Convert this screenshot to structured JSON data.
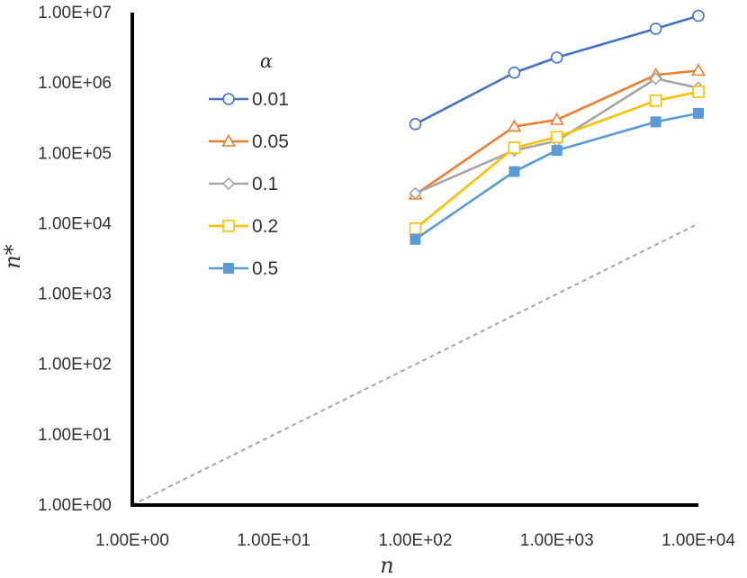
{
  "chart_data": {
    "type": "line",
    "scale": "log-log",
    "xlabel": "n",
    "ylabel": "n*",
    "xlim": [
      1,
      10000
    ],
    "ylim": [
      1,
      10000000
    ],
    "x_ticks": [
      {
        "value": 1,
        "label": "1.00E+00"
      },
      {
        "value": 10,
        "label": "1.00E+01"
      },
      {
        "value": 100,
        "label": "1.00E+02"
      },
      {
        "value": 1000,
        "label": "1.00E+03"
      },
      {
        "value": 10000,
        "label": "1.00E+04"
      }
    ],
    "y_ticks": [
      {
        "value": 1,
        "label": "1.00E+00"
      },
      {
        "value": 10,
        "label": "1.00E+01"
      },
      {
        "value": 100,
        "label": "1.00E+02"
      },
      {
        "value": 1000,
        "label": "1.00E+03"
      },
      {
        "value": 10000,
        "label": "1.00E+04"
      },
      {
        "value": 100000,
        "label": "1.00E+05"
      },
      {
        "value": 1000000,
        "label": "1.00E+06"
      },
      {
        "value": 10000000,
        "label": "1.00E+07"
      }
    ],
    "legend_title": "α",
    "legend_position": "upper-left",
    "x": [
      100,
      500,
      1000,
      5000,
      10000
    ],
    "series": [
      {
        "name": "0.01",
        "color": "#4472C4",
        "marker": "circle-open",
        "values": [
          260000,
          1400000,
          2300000,
          5900000,
          9000000
        ]
      },
      {
        "name": "0.05",
        "color": "#ED7D31",
        "marker": "triangle-open",
        "values": [
          26000,
          240000,
          300000,
          1300000,
          1500000
        ]
      },
      {
        "name": "0.1",
        "color": "#A5A5A5",
        "marker": "diamond-open",
        "values": [
          27000,
          110000,
          150000,
          1150000,
          850000
        ]
      },
      {
        "name": "0.2",
        "color": "#FFC000",
        "marker": "square-open",
        "values": [
          8500,
          120000,
          170000,
          560000,
          750000
        ]
      },
      {
        "name": "0.5",
        "color": "#5B9BD5",
        "marker": "square-filled",
        "values": [
          6000,
          55000,
          110000,
          280000,
          370000
        ]
      }
    ],
    "reference_line": {
      "name": "y = x",
      "color": "#A5A5A5",
      "style": "dashed",
      "x": [
        1,
        10000
      ],
      "y": [
        1,
        10000
      ]
    }
  }
}
